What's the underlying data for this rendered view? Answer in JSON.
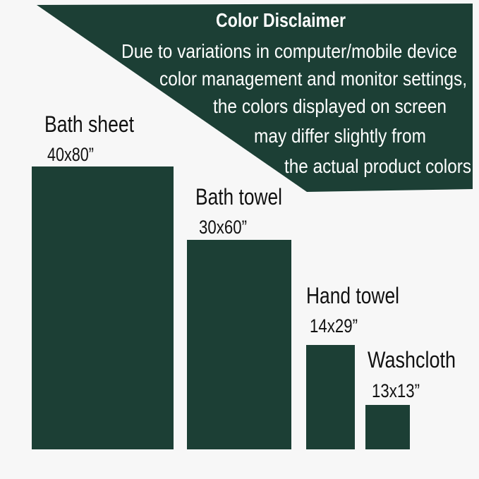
{
  "colors": {
    "background": "#f7f7f7",
    "product": "#1c3f35",
    "banner_text": "#ffffff",
    "label_text": "#111111"
  },
  "disclaimer": {
    "title": "Color Disclaimer",
    "lines": [
      "Due to variations in computer/mobile device",
      "color management and monitor settings,",
      "the colors displayed on screen",
      "may differ slightly from",
      "the actual product colors"
    ]
  },
  "products": [
    {
      "name": "Bath sheet",
      "size": "40x80”"
    },
    {
      "name": "Bath towel",
      "size": "30x60”"
    },
    {
      "name": "Hand towel",
      "size": "14x29”"
    },
    {
      "name": "Washcloth",
      "size": "13x13”"
    }
  ]
}
